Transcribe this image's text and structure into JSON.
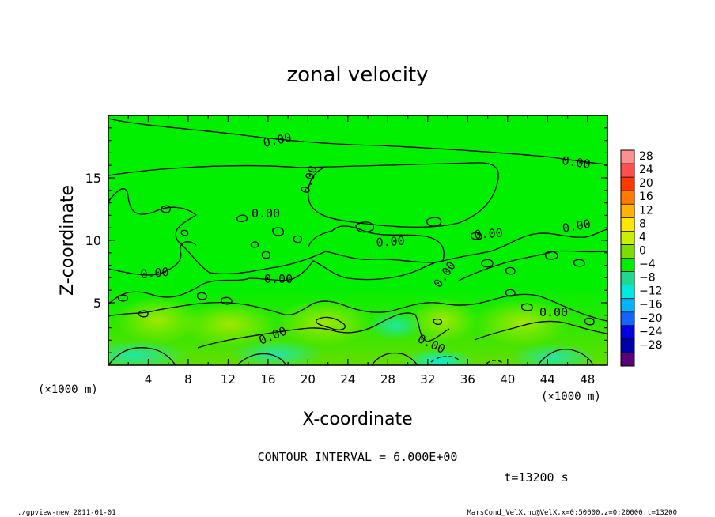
{
  "chart_data": {
    "type": "heatmap",
    "title": "zonal velocity",
    "xlabel": "X-coordinate",
    "ylabel": "Z-coordinate",
    "x_unit": "(×1000 m)",
    "x_unit_right": "(×1000 m)",
    "xlim": [
      0,
      50
    ],
    "ylim": [
      0,
      20
    ],
    "x_ticks": [
      4,
      8,
      12,
      16,
      20,
      24,
      28,
      32,
      36,
      40,
      44,
      48
    ],
    "y_ticks": [
      5,
      10,
      15
    ],
    "colorbar": {
      "labels": [
        "28",
        "24",
        "20",
        "16",
        "12",
        "8",
        "4",
        "0",
        "−4",
        "−8",
        "−12",
        "−16",
        "−20",
        "−24",
        "−28"
      ],
      "levels": [
        28,
        24,
        20,
        16,
        12,
        8,
        4,
        0,
        -4,
        -8,
        -12,
        -16,
        -20,
        -24,
        -28
      ],
      "colors": [
        "#ff8f8f",
        "#ff4f4f",
        "#ff3a00",
        "#ff7a00",
        "#ffb300",
        "#ffe600",
        "#c8f000",
        "#7ddc00",
        "#00f000",
        "#20d890",
        "#00e8e0",
        "#00b4ff",
        "#1464ff",
        "#0000e0",
        "#0000a8",
        "#5a007a"
      ]
    },
    "contour_labels": [
      "0.00",
      "0.00",
      "0.00",
      "0.00",
      "0.00",
      "0.00",
      "0.00",
      "0.00",
      "0.00",
      "0.00",
      "0.00",
      "0.00",
      "0.00"
    ],
    "contour_interval": "CONTOUR INTERVAL = 6.000E+00",
    "time_label": "t=13200 s"
  },
  "footer": {
    "left": "./gpview-new  2011-01-01",
    "right": "MarsCond_VelX.nc@VelX,x=0:50000,z=0:20000,t=13200"
  }
}
